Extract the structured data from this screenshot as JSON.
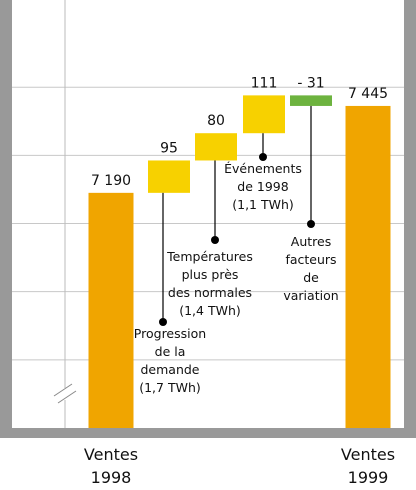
{
  "chart_data": {
    "type": "waterfall",
    "categories": [
      "Ventes\n1998",
      null,
      null,
      null,
      null,
      "Ventes\n1999"
    ],
    "values": [
      7190,
      95,
      80,
      111,
      -31,
      7445
    ],
    "value_labels": [
      "7 190",
      "95",
      "80",
      "111",
      "- 31",
      "7 445"
    ],
    "measure": [
      "total",
      "relative",
      "relative",
      "relative",
      "relative",
      "total"
    ],
    "colors": [
      "#f0a500",
      "#f7d100",
      "#f7d100",
      "#f7d100",
      "#6db33f",
      "#f0a500"
    ],
    "annotations": [
      null,
      "Progression\nde la\ndemande\n(1,7 TWh)",
      "Températures\nplus près\ndes normales\n(1,4 TWh)",
      "Événements\nde 1998\n(1,1 TWh)",
      "Autres\nfacteurs\nde\nvariation",
      null
    ],
    "ylim": [
      6500,
      7750
    ],
    "yticks": [
      6700,
      6900,
      7100,
      7300,
      7500
    ],
    "grid": true
  }
}
